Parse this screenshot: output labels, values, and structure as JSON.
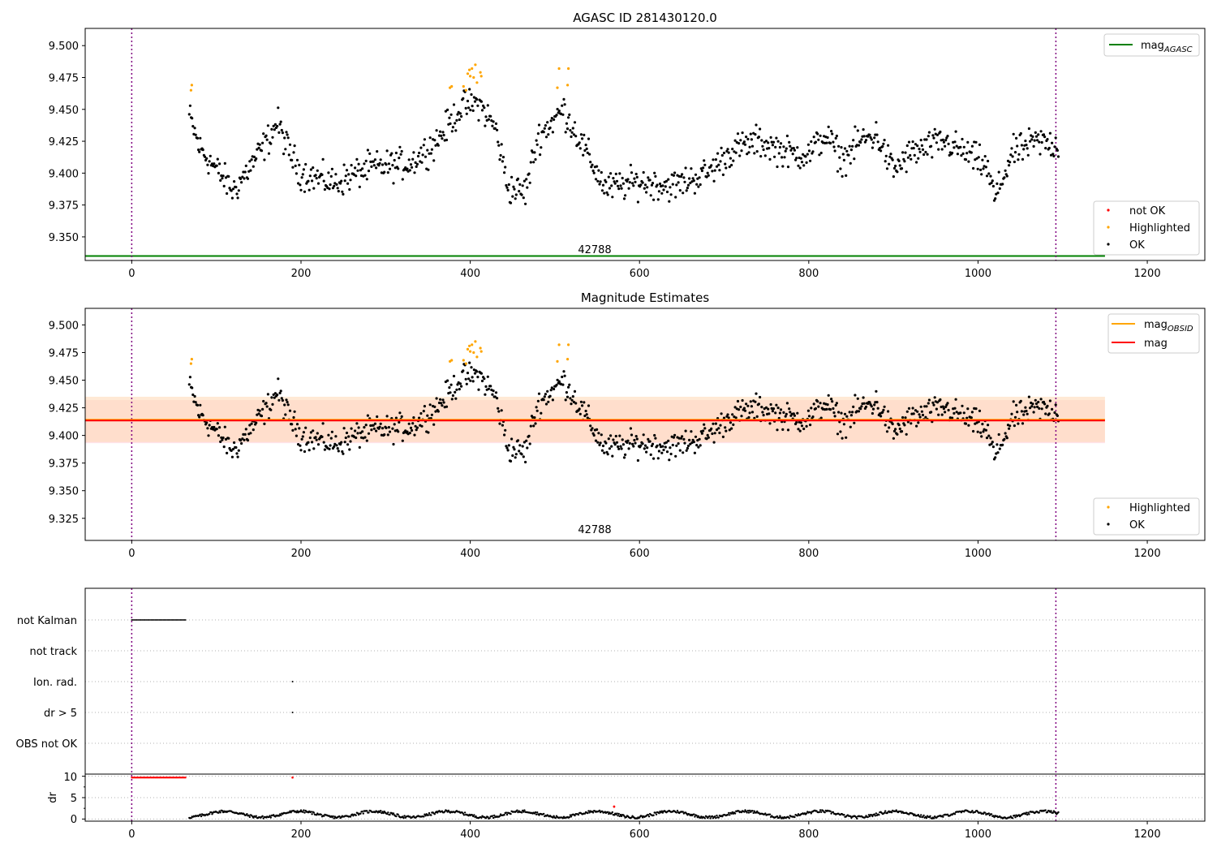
{
  "figure": {
    "panel1": {
      "title": "AGASC ID 281430120.0",
      "xlim": [
        -55,
        1268
      ],
      "ylim": [
        9.3315,
        9.5135
      ],
      "xticks": [
        0,
        200,
        400,
        600,
        800,
        1000,
        1200
      ],
      "yticks": [
        "9.350",
        "9.375",
        "9.400",
        "9.425",
        "9.450",
        "9.475",
        "9.500"
      ],
      "annotation": "42788",
      "legend_top": {
        "label": "mag",
        "sub": "AGASC",
        "color": "#008000"
      },
      "legend_bottom": [
        {
          "label": "not OK",
          "color": "#ff0000"
        },
        {
          "label": "Highlighted",
          "color": "#ffa500"
        },
        {
          "label": "OK",
          "color": "#000000"
        }
      ]
    },
    "panel2": {
      "title": "Magnitude Estimates",
      "xlim": [
        -55,
        1268
      ],
      "ylim": [
        9.305,
        9.515
      ],
      "xticks": [
        0,
        200,
        400,
        600,
        800,
        1000,
        1200
      ],
      "yticks": [
        "9.325",
        "9.350",
        "9.375",
        "9.400",
        "9.425",
        "9.450",
        "9.475",
        "9.500"
      ],
      "annotation": "42788",
      "legend_top": [
        {
          "label": "mag",
          "sub": "OBSID",
          "color": "#ffa500"
        },
        {
          "label": "mag",
          "sub": "",
          "color": "#ff0000"
        }
      ],
      "legend_bottom": [
        {
          "label": "Highlighted",
          "color": "#ffa500"
        },
        {
          "label": "OK",
          "color": "#000000"
        }
      ]
    },
    "panel3": {
      "xticks": [
        0,
        200,
        400,
        600,
        800,
        1000,
        1200
      ],
      "flag_labels": [
        "not Kalman",
        "not track",
        "Ion. rad.",
        "dr > 5",
        "OBS not OK"
      ],
      "dr_ylabel": "dr",
      "dr_yticks": [
        "0",
        "5",
        "10"
      ]
    }
  },
  "chart_data": [
    {
      "type": "scatter",
      "title": "AGASC ID 281430120.0",
      "xlim": [
        -55,
        1268
      ],
      "ylim": [
        9.3315,
        9.5135
      ],
      "x_range": [
        68,
        1095
      ],
      "vlines_dotted": [
        0,
        1092
      ],
      "hlines": [
        {
          "name": "mag_AGASC",
          "value": 9.335,
          "x_range": [
            -55,
            1150
          ]
        }
      ],
      "text": {
        "label": "42788",
        "x": 545,
        "y": 9.3405
      },
      "series": [
        {
          "name": "OK",
          "color": "#000000",
          "n_points": 950
        },
        {
          "name": "Highlighted",
          "color": "#ffa500",
          "points": [
            [
              70,
              9.465
            ],
            [
              71,
              9.469
            ],
            [
              376,
              9.467
            ],
            [
              378,
              9.468
            ],
            [
              392,
              9.468
            ],
            [
              395,
              9.465
            ],
            [
              397,
              9.478
            ],
            [
              399,
              9.481
            ],
            [
              400,
              9.476
            ],
            [
              402,
              9.482
            ],
            [
              404,
              9.475
            ],
            [
              406,
              9.485
            ],
            [
              408,
              9.471
            ],
            [
              412,
              9.479
            ],
            [
              413,
              9.476
            ],
            [
              503,
              9.467
            ],
            [
              505,
              9.482
            ],
            [
              515,
              9.469
            ],
            [
              516,
              9.482
            ]
          ]
        },
        {
          "name": "not OK",
          "color": "#ff0000",
          "points": []
        }
      ],
      "trend_knots": [
        [
          68,
          9.445
        ],
        [
          80,
          9.42
        ],
        [
          100,
          9.403
        ],
        [
          120,
          9.386
        ],
        [
          140,
          9.405
        ],
        [
          160,
          9.425
        ],
        [
          172,
          9.44
        ],
        [
          185,
          9.418
        ],
        [
          200,
          9.4
        ],
        [
          240,
          9.392
        ],
        [
          280,
          9.404
        ],
        [
          330,
          9.408
        ],
        [
          360,
          9.425
        ],
        [
          390,
          9.452
        ],
        [
          410,
          9.455
        ],
        [
          430,
          9.435
        ],
        [
          445,
          9.388
        ],
        [
          465,
          9.385
        ],
        [
          480,
          9.428
        ],
        [
          510,
          9.45
        ],
        [
          530,
          9.425
        ],
        [
          560,
          9.388
        ],
        [
          600,
          9.393
        ],
        [
          640,
          9.39
        ],
        [
          680,
          9.4
        ],
        [
          710,
          9.418
        ],
        [
          740,
          9.425
        ],
        [
          780,
          9.415
        ],
        [
          800,
          9.415
        ],
        [
          820,
          9.43
        ],
        [
          840,
          9.41
        ],
        [
          860,
          9.425
        ],
        [
          880,
          9.43
        ],
        [
          900,
          9.402
        ],
        [
          920,
          9.415
        ],
        [
          960,
          9.425
        ],
        [
          1000,
          9.41
        ],
        [
          1010,
          9.405
        ],
        [
          1020,
          9.38
        ],
        [
          1040,
          9.415
        ],
        [
          1070,
          9.425
        ],
        [
          1095,
          9.422
        ]
      ]
    },
    {
      "type": "scatter",
      "title": "Magnitude Estimates",
      "xlim": [
        -55,
        1268
      ],
      "ylim": [
        9.305,
        9.515
      ],
      "vlines_dotted": [
        0,
        1092
      ],
      "hlines": [
        {
          "name": "mag_OBSID",
          "value": 9.4135,
          "color": "#ffa500",
          "x_range": [
            -55,
            1150
          ]
        },
        {
          "name": "mag",
          "value": 9.4135,
          "color": "#ff0000",
          "x_range": [
            -55,
            1150
          ]
        }
      ],
      "bands": [
        {
          "color": "#ffc0cb",
          "y_range": [
            9.393,
            9.432
          ],
          "x_range": [
            -55,
            1150
          ]
        },
        {
          "color": "#ffdab9",
          "y_range": [
            9.394,
            9.435
          ],
          "x_range": [
            -55,
            1150
          ]
        }
      ],
      "text": {
        "label": "42788",
        "x": 545,
        "y": 9.3125
      },
      "series": [
        {
          "name": "OK",
          "color": "#000000",
          "same_as_panel": 1
        },
        {
          "name": "Highlighted",
          "color": "#ffa500",
          "same_as_panel": 1
        }
      ]
    },
    {
      "type": "scatter",
      "x": "same as panels above",
      "categories": [
        "not Kalman",
        "not track",
        "Ion. rad.",
        "dr > 5",
        "OBS not OK"
      ],
      "flags": {
        "not Kalman": {
          "x_range": [
            0,
            64
          ]
        },
        "not track": {
          "x_range": []
        },
        "Ion. rad.": {
          "points": [
            190
          ]
        },
        "dr > 5": {
          "points": [
            190
          ]
        },
        "OBS not OK": {
          "x_range": []
        }
      },
      "dr": {
        "ylim": [
          -0.5,
          10.5
        ],
        "clipped_at_10": {
          "x_range": [
            0,
            64
          ],
          "extra_points": [
            190
          ],
          "color": "#ff0000"
        },
        "outlier": {
          "x": 570,
          "value": 2.9,
          "color": "#ff0000"
        },
        "typical_range": [
          0.2,
          2.5
        ]
      }
    }
  ]
}
